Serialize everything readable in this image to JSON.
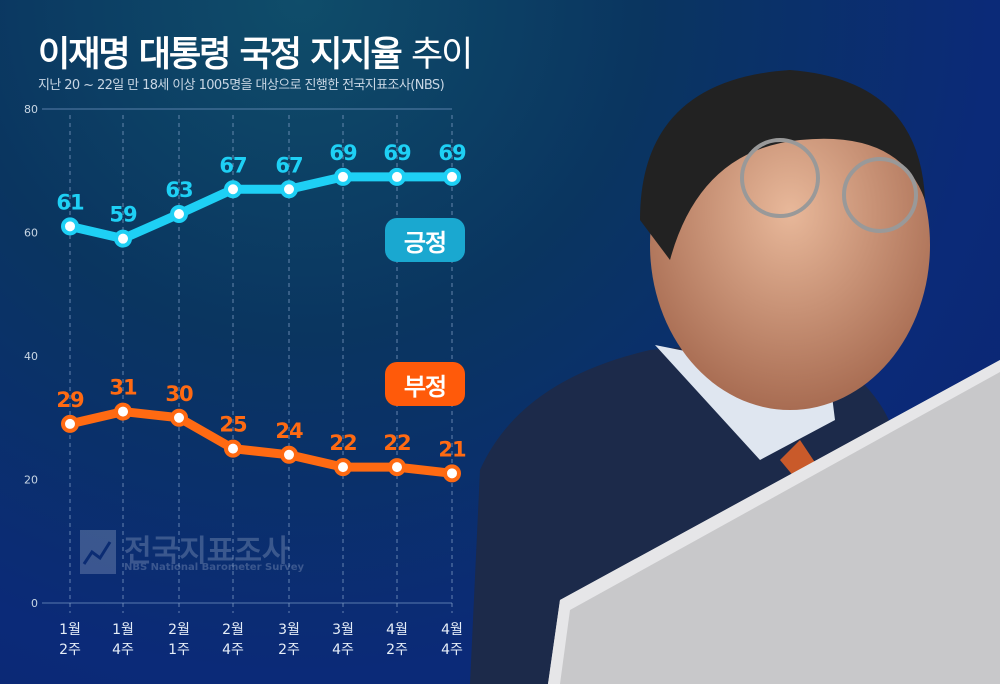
{
  "title": {
    "main": "이재명 대통령 국정 지지율",
    "suffix": "추이"
  },
  "subtitle": "지난 20 ~ 22일 만 18세 이상 1005명을 대상으로 진행한 전국지표조사(NBS)",
  "watermark": {
    "name": "전국지표조사",
    "sub": "NBS National Barometer Survey"
  },
  "chart_data": {
    "type": "line",
    "categories": [
      [
        "1월",
        "2주"
      ],
      [
        "1월",
        "4주"
      ],
      [
        "2월",
        "1주"
      ],
      [
        "2월",
        "4주"
      ],
      [
        "3월",
        "2주"
      ],
      [
        "3월",
        "4주"
      ],
      [
        "4월",
        "2주"
      ],
      [
        "4월",
        "4주"
      ]
    ],
    "y_ticks": [
      0,
      20,
      40,
      60,
      80
    ],
    "ylim": [
      0,
      80
    ],
    "grid": "vertical dashed",
    "series": [
      {
        "name": "긍정",
        "color": "#1ed0f5",
        "badge_color": "#1aa8d0",
        "values": [
          61,
          59,
          63,
          67,
          67,
          69,
          69,
          69
        ]
      },
      {
        "name": "부정",
        "color": "#ff6a12",
        "badge_color": "#ff5a0a",
        "values": [
          29,
          31,
          30,
          25,
          24,
          22,
          22,
          21
        ]
      }
    ]
  }
}
